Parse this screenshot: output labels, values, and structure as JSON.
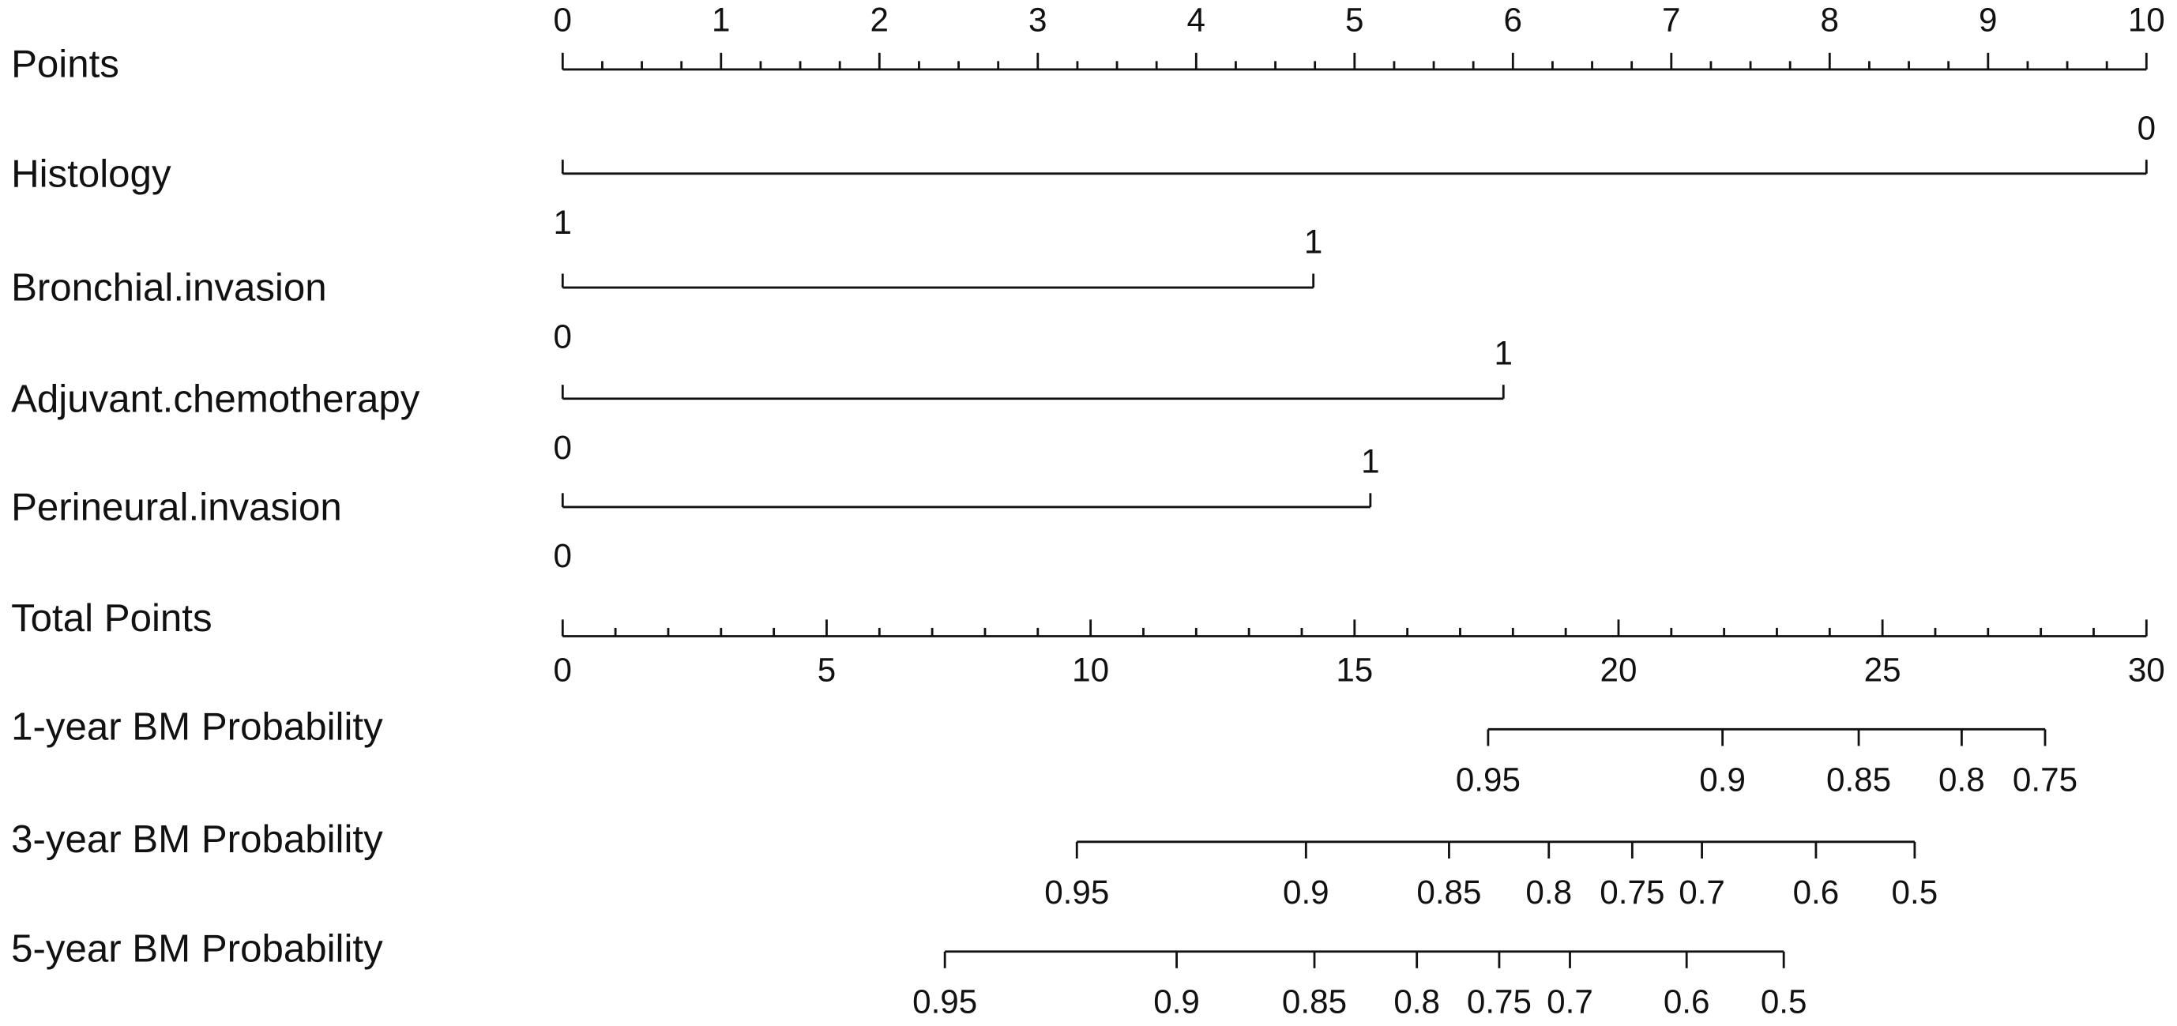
{
  "chart_data": {
    "type": "nomogram",
    "points": {
      "label": "Points",
      "lim": [
        0,
        10
      ],
      "ticks": [
        0,
        1,
        2,
        3,
        4,
        5,
        6,
        7,
        8,
        9,
        10
      ],
      "minor_ticks": [
        0.25,
        0.5,
        0.75,
        1.25,
        1.5,
        1.75,
        2.25,
        2.5,
        2.75,
        3.25,
        3.5,
        3.75,
        4.25,
        4.5,
        4.75,
        5.25,
        5.5,
        5.75,
        6.25,
        6.5,
        6.75,
        7.25,
        7.5,
        7.75,
        8.25,
        8.5,
        8.75,
        9.25,
        9.5,
        9.75
      ]
    },
    "variables": [
      {
        "name": "Histology",
        "levels": [
          {
            "label": "0",
            "points": 10
          },
          {
            "label": "1",
            "points": 0
          }
        ]
      },
      {
        "name": "Bronchial.invasion",
        "levels": [
          {
            "label": "1",
            "points": 4.74
          },
          {
            "label": "0",
            "points": 0
          }
        ]
      },
      {
        "name": "Adjuvant.chemotherapy",
        "levels": [
          {
            "label": "1",
            "points": 5.94
          },
          {
            "label": "0",
            "points": 0
          }
        ]
      },
      {
        "name": "Perineural.invasion",
        "levels": [
          {
            "label": "1",
            "points": 5.1
          },
          {
            "label": "0",
            "points": 0
          }
        ]
      }
    ],
    "total_points": {
      "label": "Total Points",
      "lim": [
        0,
        30
      ],
      "ticks": [
        0,
        5,
        10,
        15,
        20,
        25,
        30
      ],
      "minor_ticks": [
        1,
        2,
        3,
        4,
        6,
        7,
        8,
        9,
        11,
        12,
        13,
        14,
        16,
        17,
        18,
        19,
        21,
        22,
        23,
        24,
        26,
        27,
        28,
        29
      ]
    },
    "probabilities": [
      {
        "label": "1-year BM Probability",
        "ticks": [
          {
            "value": 0.95,
            "points": 17.53
          },
          {
            "value": 0.9,
            "points": 21.97
          },
          {
            "value": 0.85,
            "points": 24.55
          },
          {
            "value": 0.8,
            "points": 26.5
          },
          {
            "value": 0.75,
            "points": 28.08
          }
        ]
      },
      {
        "label": "3-year BM Probability",
        "ticks": [
          {
            "value": 0.95,
            "points": 9.74
          },
          {
            "value": 0.9,
            "points": 14.08
          },
          {
            "value": 0.85,
            "points": 16.79
          },
          {
            "value": 0.8,
            "points": 18.68
          },
          {
            "value": 0.75,
            "points": 20.26
          },
          {
            "value": 0.7,
            "points": 21.58
          },
          {
            "value": 0.6,
            "points": 23.74
          },
          {
            "value": 0.5,
            "points": 25.61
          }
        ]
      },
      {
        "label": "5-year BM Probability",
        "ticks": [
          {
            "value": 0.95,
            "points": 7.24
          },
          {
            "value": 0.9,
            "points": 11.63
          },
          {
            "value": 0.85,
            "points": 14.24
          },
          {
            "value": 0.8,
            "points": 16.18
          },
          {
            "value": 0.75,
            "points": 17.74
          },
          {
            "value": 0.7,
            "points": 19.08
          },
          {
            "value": 0.6,
            "points": 21.29
          },
          {
            "value": 0.5,
            "points": 23.13
          }
        ]
      }
    ]
  }
}
